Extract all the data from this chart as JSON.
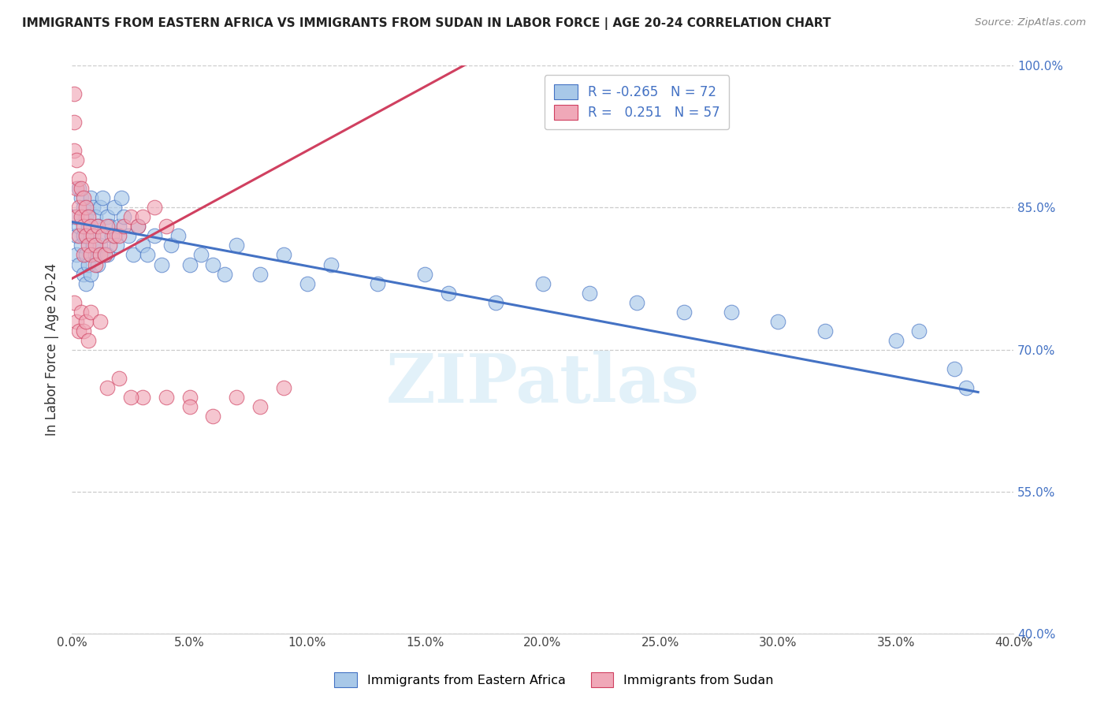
{
  "title": "IMMIGRANTS FROM EASTERN AFRICA VS IMMIGRANTS FROM SUDAN IN LABOR FORCE | AGE 20-24 CORRELATION CHART",
  "source": "Source: ZipAtlas.com",
  "ylabel": "In Labor Force | Age 20-24",
  "legend_label_blue": "Immigrants from Eastern Africa",
  "legend_label_pink": "Immigrants from Sudan",
  "R_blue": -0.265,
  "N_blue": 72,
  "R_pink": 0.251,
  "N_pink": 57,
  "xlim": [
    0.0,
    0.4
  ],
  "ylim": [
    0.4,
    1.0
  ],
  "xtick_vals": [
    0.0,
    0.05,
    0.1,
    0.15,
    0.2,
    0.25,
    0.3,
    0.35,
    0.4
  ],
  "ytick_vals": [
    0.4,
    0.55,
    0.7,
    0.85,
    1.0
  ],
  "color_blue": "#a8c8e8",
  "color_pink": "#f0a8b8",
  "line_color_blue": "#4472c4",
  "line_color_pink": "#d04060",
  "watermark": "ZIPatlas",
  "background_color": "#ffffff",
  "blue_line_x0": 0.0,
  "blue_line_y0": 0.835,
  "blue_line_x1": 0.385,
  "blue_line_y1": 0.655,
  "pink_line_x0": 0.0,
  "pink_line_y0": 0.775,
  "pink_line_x1": 0.17,
  "pink_line_y1": 1.005,
  "blue_x": [
    0.001,
    0.002,
    0.002,
    0.003,
    0.003,
    0.003,
    0.004,
    0.004,
    0.005,
    0.005,
    0.005,
    0.006,
    0.006,
    0.006,
    0.007,
    0.007,
    0.008,
    0.008,
    0.008,
    0.009,
    0.009,
    0.01,
    0.01,
    0.011,
    0.011,
    0.012,
    0.012,
    0.013,
    0.013,
    0.014,
    0.015,
    0.015,
    0.016,
    0.017,
    0.018,
    0.019,
    0.02,
    0.021,
    0.022,
    0.024,
    0.026,
    0.028,
    0.03,
    0.032,
    0.035,
    0.038,
    0.042,
    0.045,
    0.05,
    0.055,
    0.06,
    0.065,
    0.07,
    0.08,
    0.09,
    0.1,
    0.11,
    0.13,
    0.15,
    0.16,
    0.18,
    0.2,
    0.22,
    0.24,
    0.26,
    0.28,
    0.3,
    0.32,
    0.35,
    0.36,
    0.375,
    0.38
  ],
  "blue_y": [
    0.84,
    0.82,
    0.8,
    0.87,
    0.83,
    0.79,
    0.86,
    0.81,
    0.85,
    0.82,
    0.78,
    0.84,
    0.8,
    0.77,
    0.83,
    0.79,
    0.86,
    0.82,
    0.78,
    0.85,
    0.81,
    0.84,
    0.8,
    0.83,
    0.79,
    0.85,
    0.81,
    0.86,
    0.82,
    0.8,
    0.84,
    0.8,
    0.83,
    0.82,
    0.85,
    0.81,
    0.83,
    0.86,
    0.84,
    0.82,
    0.8,
    0.83,
    0.81,
    0.8,
    0.82,
    0.79,
    0.81,
    0.82,
    0.79,
    0.8,
    0.79,
    0.78,
    0.81,
    0.78,
    0.8,
    0.77,
    0.79,
    0.77,
    0.78,
    0.76,
    0.75,
    0.77,
    0.76,
    0.75,
    0.74,
    0.74,
    0.73,
    0.72,
    0.71,
    0.72,
    0.68,
    0.66
  ],
  "pink_x": [
    0.001,
    0.001,
    0.001,
    0.002,
    0.002,
    0.002,
    0.003,
    0.003,
    0.003,
    0.004,
    0.004,
    0.005,
    0.005,
    0.005,
    0.006,
    0.006,
    0.007,
    0.007,
    0.008,
    0.008,
    0.009,
    0.01,
    0.01,
    0.011,
    0.012,
    0.013,
    0.014,
    0.015,
    0.016,
    0.018,
    0.02,
    0.022,
    0.025,
    0.028,
    0.03,
    0.035,
    0.04,
    0.05,
    0.06,
    0.07,
    0.08,
    0.09,
    0.001,
    0.002,
    0.003,
    0.004,
    0.005,
    0.006,
    0.007,
    0.03,
    0.04,
    0.02,
    0.05,
    0.015,
    0.025,
    0.008,
    0.012
  ],
  "pink_y": [
    0.97,
    0.94,
    0.91,
    0.9,
    0.87,
    0.84,
    0.88,
    0.85,
    0.82,
    0.87,
    0.84,
    0.86,
    0.83,
    0.8,
    0.85,
    0.82,
    0.84,
    0.81,
    0.83,
    0.8,
    0.82,
    0.81,
    0.79,
    0.83,
    0.8,
    0.82,
    0.8,
    0.83,
    0.81,
    0.82,
    0.82,
    0.83,
    0.84,
    0.83,
    0.84,
    0.85,
    0.83,
    0.65,
    0.63,
    0.65,
    0.64,
    0.66,
    0.75,
    0.73,
    0.72,
    0.74,
    0.72,
    0.73,
    0.71,
    0.65,
    0.65,
    0.67,
    0.64,
    0.66,
    0.65,
    0.74,
    0.73
  ]
}
